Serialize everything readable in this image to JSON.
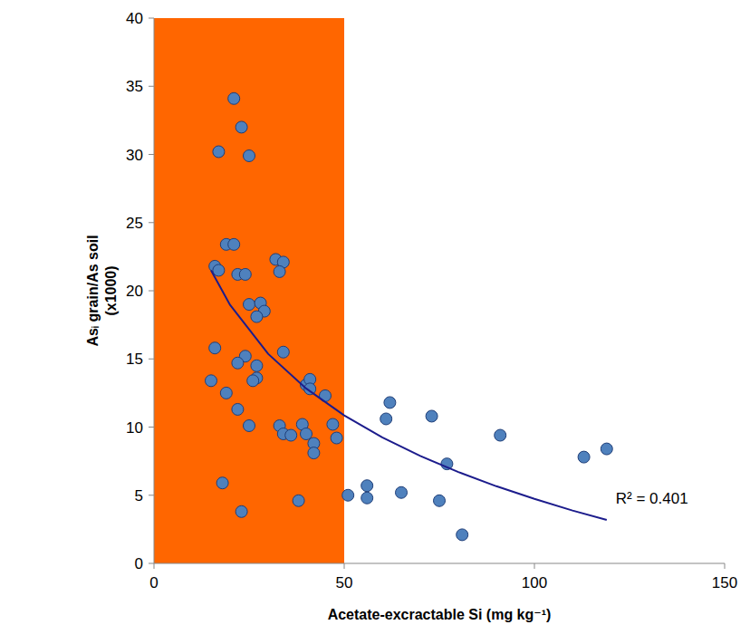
{
  "chart_data": {
    "type": "scatter",
    "x_label": "Acetate-excractable Si (mg kg⁻¹)",
    "y_label": "Asᵢ grain/As soil (x1000)",
    "xlim": [
      0,
      150
    ],
    "ylim": [
      0,
      40
    ],
    "xticks": [
      0,
      50,
      100,
      150
    ],
    "yticks": [
      0,
      5,
      10,
      15,
      20,
      25,
      30,
      35,
      40
    ],
    "grid": false,
    "shaded_band": {
      "xlim": [
        0,
        50
      ],
      "color": "#ff6600"
    },
    "annotations": [
      {
        "text": "R² = 0.401"
      }
    ],
    "series": [
      {
        "type": "scatter",
        "marker": "circle",
        "color": "#4f81bd",
        "x": [
          21,
          23,
          17,
          25,
          19,
          21,
          16,
          17,
          22,
          24,
          32,
          34,
          33,
          25,
          28,
          29,
          27,
          16,
          34,
          24,
          22,
          27,
          27,
          26,
          15,
          19,
          22,
          25,
          33,
          34,
          36,
          39,
          40,
          41,
          41,
          45,
          40,
          42,
          42,
          47,
          48,
          18,
          38,
          23,
          51,
          56,
          56,
          61,
          62,
          65,
          73,
          75,
          77,
          81,
          91,
          113,
          119
        ],
        "values": [
          34.1,
          32,
          30.2,
          29.9,
          23.4,
          23.4,
          21.8,
          21.5,
          21.2,
          21.2,
          22.3,
          22.1,
          21.4,
          19,
          19.1,
          18.5,
          18.1,
          15.8,
          15.5,
          15.2,
          14.7,
          14.5,
          13.6,
          13.4,
          13.4,
          12.5,
          11.3,
          10.1,
          10.1,
          9.5,
          9.4,
          10.2,
          13.1,
          13.5,
          12.8,
          12.3,
          9.5,
          8.8,
          8.1,
          10.2,
          9.2,
          5.9,
          4.6,
          3.8,
          5.0,
          5.7,
          4.8,
          10.6,
          11.8,
          5.2,
          10.8,
          4.6,
          7.3,
          2.1,
          9.4,
          7.8,
          8.4
        ]
      },
      {
        "type": "line",
        "line_style": "solid",
        "color": "#1c1c8c",
        "x": [
          15,
          20,
          30,
          40,
          50,
          60,
          70,
          80,
          90,
          100,
          110,
          119
        ],
        "values": [
          21.5,
          18.96,
          15.37,
          12.83,
          10.86,
          9.25,
          7.88,
          6.7,
          5.66,
          4.73,
          3.88,
          3.19
        ]
      }
    ]
  }
}
